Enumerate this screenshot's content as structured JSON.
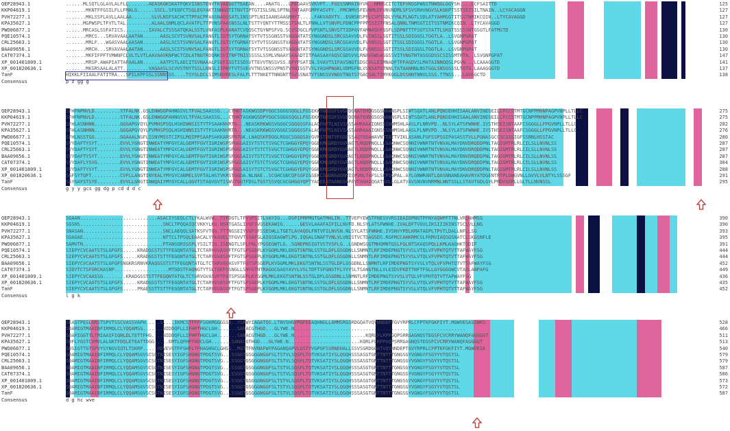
{
  "names": [
    "QEP28943.1",
    "KKP04619.1",
    "PVH72277.1",
    "KPA35627.1",
    "PWO06677.1",
    "PQE10574.1",
    "CRL25663.1",
    "BAA09656.1",
    "CAT07374.1",
    "XP_001401809.1",
    "XP_001820636.1",
    "TanF",
    "Consensus"
  ],
  "blocks": [
    {
      "rows": [
        "......MLSQTLGLAVLALFLL.......AEASKGKSKATFQKVISNSTENVTKVAEGGTTEAEAN....ANATG...LPEGAAVSVKVPT..FGSSSNMAINYVN..NMNSCITCTEFVNSGFWGSTNWQGLGGYSH....LCFSAITTD",
        ".......MKNTFFGSILFLLFMALG......SSCL.SFEQFCTSGLEGYAKTINNGQTITNVTIPTGTISLSNLSPTNLTNTAAFGMPFASVFY..FMCNMVSFEVNMLDFVNVNDMLSFSVSRHVNGVSLKGKPTSSTIEISILTNAIN..LCYACAGGN",
        ".......MKLSSFLAVLLAALAA.......SLVLNSFSACHCTTPFACPFAGSNAQSSATLINSSPTLNIIAANSAAGNNYT.....FAKVAQVTV..EGNSNSPFLCSPTADLVYNLFLNGTLSDLATYAHMSGTITSSTNMIKCQIN..LTYCAVAGGD",
        "......MGPWSPLTFVTLTAL.........ALAALSNMLQCLAVATFLTTPVNSFAASNSSLNLTSTTYQNTYTTMSSSTSNLTLFNNLLVTSNVPLFDNCPPFPPSSISTFNSALQNNLTNMSGTIITSSTNMIKCQIN..LTYCAVAGGD",
        "......MRCASLSSFATICS.........IAVALCTSSSATQKALSSTLVNFASPLKANATCVQQSCTGYNPSFVG.SCVSDGCLPVPSNTLSNVSTTIDPAVFAMNASKFGSFLSDPNTTTFSGTSTATTLSKGTSSSSSNTGSGTLFATMSTD",
        ".......MRCS...SRVAVAALAATAN......AASLSCVTSVNVSALFANGTLIGTSYTGRNATSYTVTSSGNSSTVAGGNTATSYNGGNDSLSRCGSAVVDLFVSNSSLSGTITSSLSDIGGSLTGGTLA..LSVGNPGPAT",
        ".......MRLF...WGASVAALAASAN......AASLSCSTSVNVSALFANGTLIGTSYTGRNATSYTVTSSGNSSTVAGGNTATSYNGGNDSLSRCGSAVVDLFVSNSSLSGTITSSLSDIGGSLTGGTLA..LSVGNPGPAT",
        ".......MRCH...SRVAVAALAATAN......AASLSCSTSVNVSALFANGTLIGTSYTGRNATSYTVTSSGNSSTVAGGNTATSYNGGNDSLSRCGSAVVDLFVSNSSLSGTITSSLSDIGGSLTGGTLA..LSVGNPGPAT",
        ".......MKFIFPFTVMWNFCLVLTLVTLAAVAAVKNFWCTCDLATNGTRDQNKSVITNFTNISSSSSLSSMLVNAAYSAAADTITPAASAAYAQSCGDSVVLRNAVGWSASGSSVITVNGTNTASGSDSSCSISSMTNTA..LSVGNPGPAT",
        ".......MRSP.AWAPIATTAFAALAN......AATPSTLAECITSVNAAALFSEFIGSTISDSVTTEVVTNSSVSS.EFYPSATIN.SVAVTSIFAVSNGTSDSCVLLEIMNADFTFFAGDVSLMATAINNGQSLPGVN...LCAAAGGTD",
        ".......MKSRSAALALATT.........VAGAASLSCVVSTNYTSSLLNNSLIIPNYTVTSVEVVTNSSNSSVPNSTVYNISSTVYLYASHPNGKLVDMSFNLVSNSATSTNNLTATAANNNLNSTGGLSNSGSSSLTQTG.LAAAGGGTD",
        "HIKKLFIIAALFATITRA...SPILKPFSSLSSNNSSS....TSYSLDCLSIMSNVRESLFALFLTTTNKETTNNGNTTSVSSNATVTSNSSVVNGVTNGTSTGAQSALTIMYKGGLDSSNNTNNVLSSS.TTNSS...LAVGGCTD",
        "                                                                                                            p          z   gg         g             "
      ],
      "nums": [
        "125",
        "127",
        "127",
        "127",
        "130",
        "130",
        "130",
        "130",
        "147",
        "141",
        "137",
        "138",
        ""
      ],
      "consensus": "                                                                                        p            z   g  gg                           g             "
    },
    {
      "rows": [
        "SFHFNPNVLD.........STFALNK.GSLENWGGPAHNGSVLTFVALSAASSG...CTHKTASKWGSDPYGGCSGGGSQGLLFGSEKWTNDIGFSVGFDQNATEHDGSGSWAWNSPLSIWTSQATLANLPQNSEHHISAALANVINEQEILCFCCSTMTGCNPPMHNPAGPVNPLLTLLC",
        "SFHFNPNVLD.........STFALNK.GSLENWGGPAHNGSVLTFVALSAASSG...CTHKTASKWGSDPYGGCSGGGSQGLLFGSEKWTNDIGFSVGFDQNATEHDGSGSWAWNSPLSIWTSQATLANLPQNSEHHISAALANVINEQEILCFCCSTMTGCNPPMHNPAGPVNPLLTLLC",
        "SFHLASNHNN.........GGGAPGVQYLPVMHSPSQLHSHIWNSISTYTFSAAKNVRTG...NEASKRKWGSVGGGCSGGGSSFALAGFHPTLNIVIASSAHRAAAIGNSSSHWMSHLAASLFLNRVPD..NLSYLATSFWNHE.IVSTHSEISNTAAFCSGGGLLFPGVNPLLTLLC",
        "SFHLASNHNN.........GGGAPGVQYLPVMHSPSQLHSHIWNSISTYTFSAAKNVRTG...NEASKRKWGSVGGGCSGGGSSFALAGFHPTLNIVIASSAHRAAAIGNSSSHWMSHLAASLFLNRVPD..NLSYLATSFWNHE.IVSTHSEISNTAAFCSGGGLLFPGVNPLLTLLC",
        "SFHLNSSTGG.........GGAAALNGFLSSNYMSSTCIPSLMQIPPSAAPSAKKARSPRTGK.LNAQSKFDGGLRGGCSGGGSAVGVNSTDNTVFGDFSSAGTGSAWAVNTTATTVIKLASANLFGFSSPSGIPASASSTVLLPGNASGCCGCGSGIGFSSNNLHSSTAC",
        "SVYDAFTYSYT........EVVLYGNGTINWEATYMFGYCALGEMTFGVTIGRIWSPSPGGSAISYTSTCTSVGCTCGHGGYEPQYGGEKMKGRDYGVRAGTLNQDPNQLLLGAQNWCSQNNIVWNRTNTVNVALMAYDNVDRQDDPNLTAGIGMTRLRLCILSLLNVNLSS",
        "SVYDAFTYSYT........EVVLYGNGTINWEATYMFGYCALGEMTFGVTIGRIWSPSPGGSAISYTSTCTSVGCTCGHGGYEPQYGGEKMKGRDYGVRAGTLNQDPNQLLLGAQNWCSQNNIVWNRTNTVNVALMAYDNVDRQDDPNLTAGIGMTRLRLCILSLLNVNLSS",
        "SVYDAFTYSYT........EVVLYGNGTINWEATYMFGYCALGEMTFGVTIGRIWSPSPGGSAISYTSTCTSVGCTCGHGGYEPQYGGEKMKGRDYGVRAGTLNQDPNQLLLGAQNWCSQNNIVWNRTNTVNVALMAYDNVDRQDDPNLTAGIGMTRLRLCILSLLNVNLSS",
        "SVYDAFLYSVG........EVVLYGNGTINWEATYMFGYCALGEMTFGVTIGRIWSPSPGGSAISYTSTCTSVGCTCGHGGYEPQYGGEKMKGRDYGVRAGTLNQDPNQLLLGAQNWCSQNNIVWNRTNTVNVALMAYDNVDRQDDPNLTAGIGMTRLRLCILSLLNVNLSS",
        "SVYDAFTYSYT........EVVLYGNGTINWEATYMFGYCALGEMTFGVTIGRIWSPSPGGSAISYTSTCTSVGCTCGHGGYEPQYGGEKMKGRDYGVRAGTLNQDPNQLLLGAQNWCSQNNIVWNRTNTVNVALMAYDNVDRQDDPNLTAGIGMTRLRLCILSLLNVNLSS",
        "SGFSYTQFT..........CVFLLANGTINYEALYMYGYCANMELSVFTALHSTVKRSTGGDA.NLNAE..SCGHCGNCQFSGFIGSEKCSNGNGAGNMISPVNLTAFSLSCPSGPAL.AYLGNWRANTLQASNNANEAHAVRYATDGENTRTPLGWGVNLLGVVLVLNTYLSSSGF",
        "SAYGAFSTSYE........EVVLLGNGTINWQAIYMYGYCALLGGVTSTAGVGVTISWVTGGTFDSLTGSTSSVQCGCGHGGYQPTYAGEEATAANGSGPAVTAGHIQGATSVLLGLATVAVSNVNVNRMNLWNTSSLLSTAVTGDLGVLPNDVGSRLLGLTLLNVNSSL",
        "g                                                          y      y  gcs gg      dg   p                                                 cd d  d       c        "
      ],
      "nums": [
        "275",
        "275",
        "282",
        "276",
        "280",
        "287",
        "287",
        "287",
        "304",
        "288",
        "291",
        "295",
        ""
      ]
    },
    {
      "rows": [
        "SGAAN...........................ASACIYSEQLCTLYKALWVW..TYFDGTLTFVVPSITLVAYIG...DSPIPMPMGTGATMHLIN..TTVEPYEWSTFNESVVRSIEAIDPNGTPFNYAQHPFTTNLVRLNHMSG",
        "SGSHS.............................SNCLTPQQAIQCVKKYLKG.NSHTGASLIVGFSVGSEKAWIG......GESVLAAAFAIFILLNVFD.NLSYLATSFWNHE.IVALDFTVGVLIKSIIIKINSTSCLVLLNG",
        "SNASAN............................SNCLAEQQLSATKSFVTQG.TTTNGSEIYVGFSFSSESWLLTGETLAVAQDLFNTVFILNVSN.NLSYLATSFWNHE.IVSNVYPDLKMATAEPLTPVTLDALLNFLLSG",
        "SGAGAE............................NTTCLTPSQLEAACALYYKAVELTFGVVTSVAFGLAIGSEAGWTLPG.IQGALSNAFTVNLVLVNISTVCTDAGSDS.RGFMCCAHKRMCSLFKMVIAQSGSNATCLSKGSNFLE",
        "SAMVTN............................PTANSQRIGSPLYSILTIG.ISENGTLSFLFNLYPGSEGWTLG..SGNEPNSIGTVSTVSFLG..LGNDWSGGTMHGMNTGSLFGLNTSKAQSPQLLKMLKAGHKTGDIF",
        "SIEPYCVCAATSTSLGFGFS.....KRADGSSTSTTFEGQNTATGLTCTARVGVASVFTFGTSPSGEPLKYGGMLMKLEKGTSNTNLSSTGLDFLGSGDNLLSNMNTLRFIMDEPNGTSYVSLVTQLVFVPHTQTVTTAFWAYFSG",
        "SIEPYCVCAATSTSLGFGFS.....KRADGSSTSTTFEGQNTATGLTCTARVGVASVFTFGTSPSGEPLKYGGMLMKLEKGTSNTNLSSTGLDFLGSGDNLLSNMNTLRFIMDEPNGTSYVSLVTQLVFVPHTQTVTTAFWAYFSG",
        "SIEPYCVCAATSTSLGFGFSNGKRSRNVKRAQGSSTSTTFEGQNTATGLTCTARVGVASVFTFGTSPSGEPLKYGGMLMKLEKGTSNTNLSSTGLDFLGSGDNLLSNMNTLRFIMDEPNGTSYVSLVTQLVFVPHTQTVTTAFWAYFSG",
        "SIDYTCTSFGRCKASNP...................MTGDSTFAQNGTYTSLTGEFVSNGLLSNYGTNTRAGGCGAGYAVYLVSLTDFTSFGNSTFLYVYSLTSANGTNLLVLEIDVFKDTTNFTFGLLGYGGGGWCVTASLANPAFG",
        "SIEPYCVCAASSG........KRADGSSTSTTFEGQNTATGLTCTARVGVASVFTFGTSPSGEPLKYGGMLMKLEKGTSNTNLSSTGLDFLGSGDNLLSNMNTLRFIMDEPNGTSYVSLVTQLVFVPHTQTVTTAFWAYFSG",
        "SIEPYCVCAATSTSLGFGFS.....KRADGSSTSTTFEGQNTATGLTCTARVGVASVFTFGTSPSGEPLKYGGMLMKLEKGTSNTNLSSTGLDFLGSGDNLLSNMNTLRFIMDEPNGTSYVSLVTQLVFVPHTQTVTTAFWAYFSG",
        "SIEPYCVCAATSTSLGFGFS.....PRAESSTTSTTFEGQNTATGLTCTARVGVASVFTFGTSPSGEPLKYGGMLMKLEKGTSNTNLSSTGLDFLGSGDNLLSNMNTLRFIMDEPNGTSYVSLVTQLVFVPHTQTVTTAFWAYFSG",
        "                                                                                                                                  l      g k      "
      ],
      "nums": [
        "390",
        "390",
        "393",
        "395",
        "391",
        "444",
        "444",
        "452",
        "449",
        "436",
        "435",
        "452",
        ""
      ]
    },
    {
      "rows": [
        "SEASTPESLGRSTSPVTSSCVASSVAPH.....S....IKMCSTFFFFSGKMGGGSSQ..YSPWYIAGATQS.LTNVSHGVPGFEEAQHNGLLAMMSRGSRDGQATVQYNNDEPTGVYRPRLCFPTKFGKFIYT.MGWVESASSWKS",
        "SDAMIGTMAAIBFIRMQLCLYQQAMSG.......NIDDQFLLIFHPTHGCLGH.......SANACGTHGD...GLYWE.N............................................................",
        "SDAPIGGTTLTMIAAIFIQNLDLTETTFHG....NIDDQFLLIFHPTHGCLGH.......SANACGTHGD...GLYWE.N.........................KQRLFLRPPGQPSRRGAGNQSTEGSFCVCRRYWANQFAGGGGT",
        "SDFLYGSTCVMVLALGKTFDQLETEATTDGG.....EMTLQFHPTHGCLGH.......SANACGTHGD...GLYWE.N.........................KQRLFLRPPGQPSRRGAGNQSTEGSFCVCRRYWANQFAGGGGT",
        "SDSIGTTGTSPVYSYNGVIQTLTSKRP.....VDVEVGTFFSHFLTFHAGHGCLGHSS..MGTTFNVNAFWYPAGANQAPVLGSTVVGPGFSSRNEHALLSSVSGRDGQATVQYNNDEPTGVYRPRLCFPTKFGKFIYT.MGWVESA",
        "SDAMIGTMAAIBFIRMQLCLYQQAMSGVSCSGTNISESYIGFSHGNGTPDGTSVG...SSGGTGSGGGNGGFSLTSTVLSQSFLTQTVKSATIYSLQGQHSSSASGTGNTTNTTTGNGSGYVGNGYFSGYYVTQSTSL",
        "SDAMIGTMAAIBFIRMQLCLYQQAMSGVSCSGTNISESYIGFSHGNGTPDGTSVG...SSGGTGSGGGNGGFSLTSTVLSQSFLTQTVKSATIYSLQGQHSSSASGTGNTTNTTTGNGSGYVGNGYFSGYYVTQSTSL",
        "SDAMIGTMAAIBFIRMQLCLYQQAMSGVSCSGTNISESYIGFSHGNGTPDGTSVG...SSGGTGSGGGNGGFSLTSTVLSQSFLTQTVKSATIYSLQGQHSSSASGTGNTTNTTTGNGSGYVGNGYFSGYYVTQSTSL",
        "SDAMIGTMAAIBFIRMQLCLYQQAMSGVSCSGTNISESYIGFSHGNGTPDGTSVG...SSGGTGSGGGNGGFSLTSTVLSQSFLTQTVKSATIYSLQGQHSSSASGTGNTTNTTTGNGSGYVGNGYFSGYYVTQSTSL",
        "SDAMIGTMAAIBFIRMQLCLYQQAMSGVSCSGTNISESYIGFSHGNGTPDGTSVG...SSGGTGSGGGNGGFSLTSTVLSQSFLTQTVKSATIYSLQGQHSSSASGTGNTTNTTTGNGSGYVGNGYFSGYYVTQSTSL",
        "SDAMIGTMAAIBFIRMQLCLYQQAMSGVSCSGTNISESYIGFSHGNGTPDGTSVG...SSGGTGSGGGNGGFSLTSTVLSQSFLTQTVKSATIYSLQGQHSSSASGTGNTTNTTTGNGSGYVGNGYFSGYYVTQSTSL",
        "SDAMIGTMAAIBFIRMQLCLYQQAMSGVSCSGTNISESYIGFSHGNGTPDGTSVG...SSGGTGSGGGNGGFSLTSTVLSQSFLTQTVKSATIYSLQGQHSSSASGTGNTTNTTTGNGSGYVGNGYFSGYYVTQSTSL",
        "d                                        g hc                            wve                                                                  "
      ],
      "nums": [
        "528",
        "466",
        "511",
        "513",
        "540",
        "579",
        "579",
        "587",
        "586",
        "573",
        "572",
        "587",
        ""
      ]
    }
  ]
}
